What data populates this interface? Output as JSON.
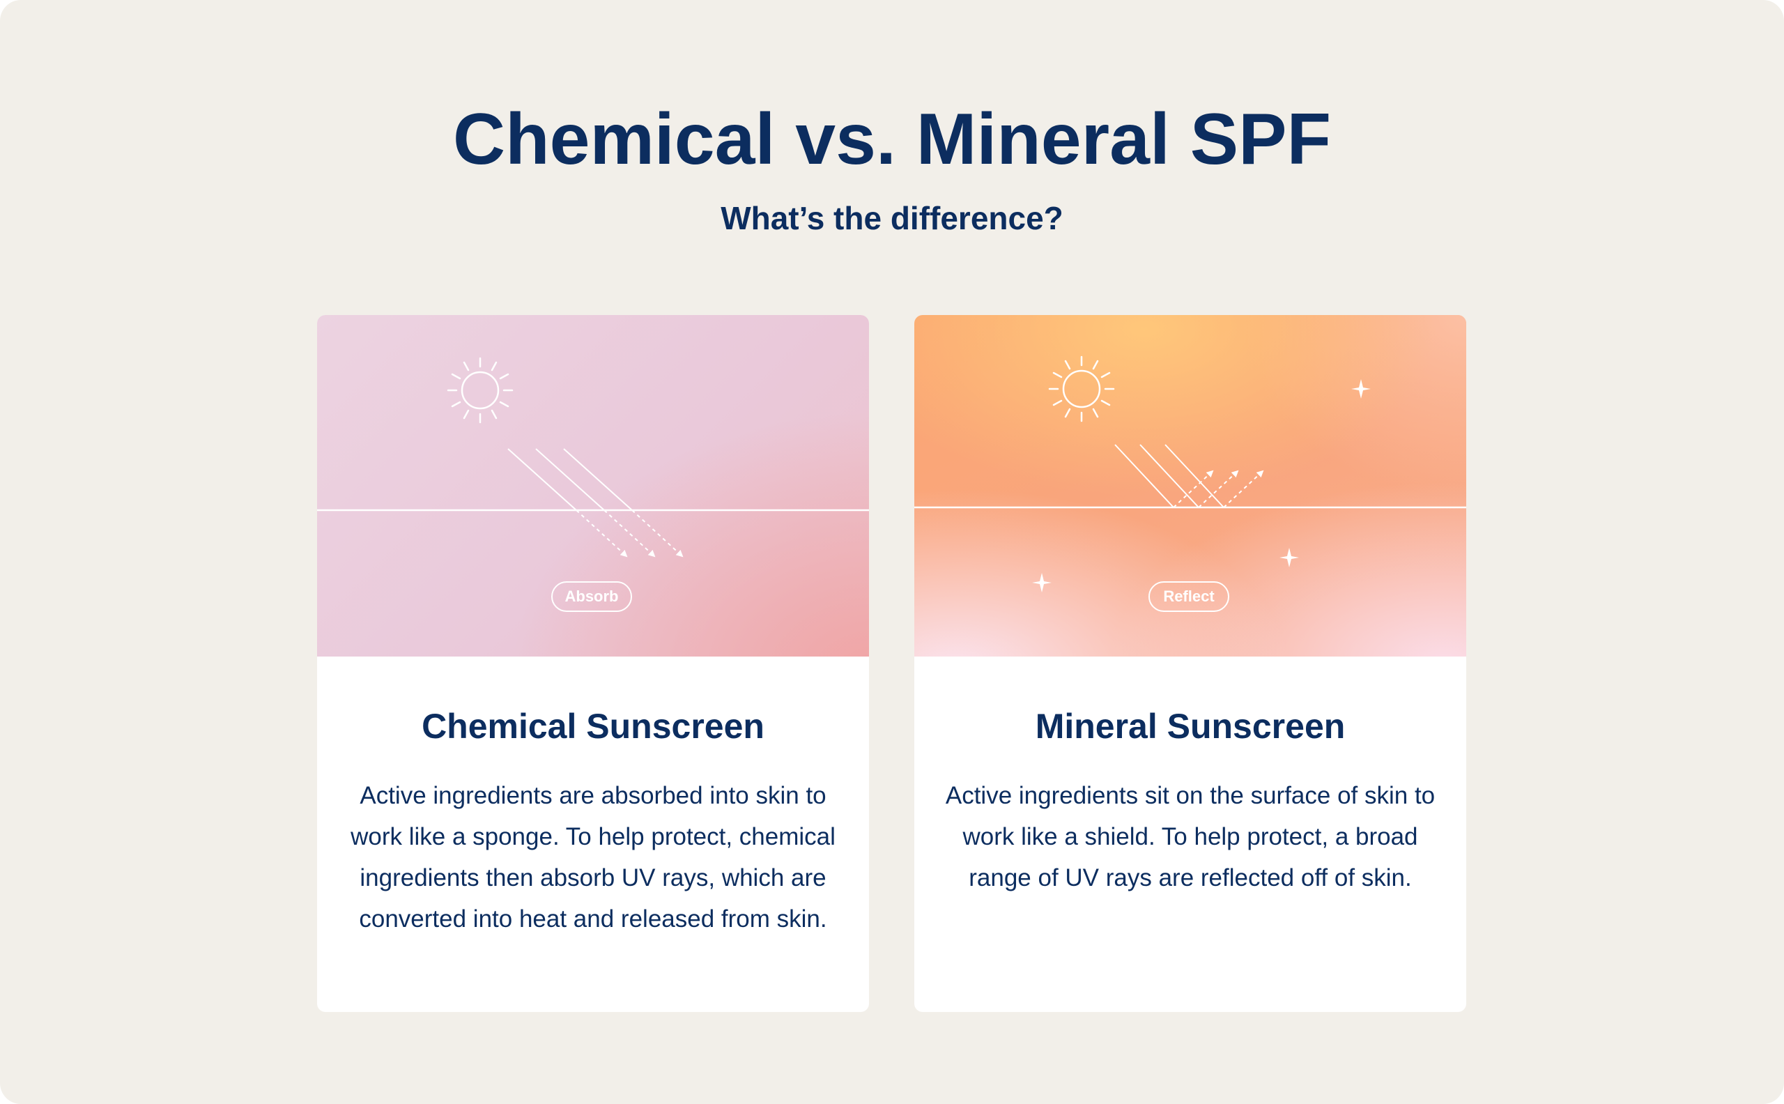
{
  "header": {
    "title": "Chemical vs. Mineral SPF",
    "subtitle": "What’s the difference?"
  },
  "cards": [
    {
      "badge": "Absorb",
      "title": "Chemical Sunscreen",
      "body": "Active ingredients are absorbed into skin to work like a sponge. To help protect, chemical ingredients then absorb UV rays, which are converted into heat and released from skin."
    },
    {
      "badge": "Reflect",
      "title": "Mineral Sunscreen",
      "body": "Active ingredients sit on the surface of skin to work like a shield. To help protect, a broad range of UV rays are reflected off of skin."
    }
  ],
  "icons": [
    "sun-icon",
    "uv-ray-arrows",
    "skin-surface-line",
    "sparkle-icon"
  ],
  "colors": {
    "background": "#f2efe9",
    "navy": "#0c2d5f",
    "card": "#ffffff",
    "chemical_gradient_start": "#ecd3e1",
    "chemical_gradient_end": "#f0a4a4",
    "mineral_gradient_start": "#fba872",
    "mineral_gradient_end": "#fbe4ef"
  }
}
